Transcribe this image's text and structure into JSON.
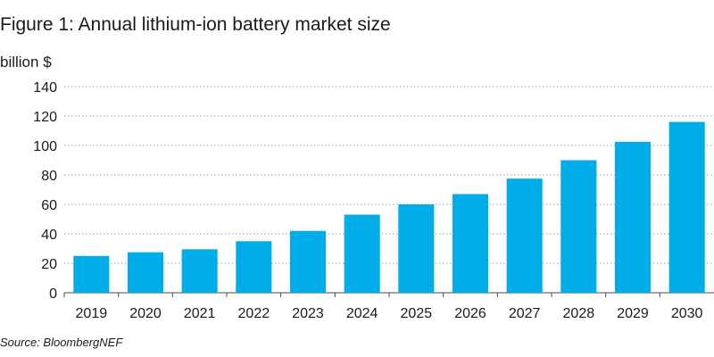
{
  "chart_data": {
    "type": "bar",
    "title": "Figure 1: Annual lithium-ion battery market size",
    "ylabel": "billion $",
    "xlabel": "",
    "categories": [
      "2019",
      "2020",
      "2021",
      "2022",
      "2023",
      "2024",
      "2025",
      "2026",
      "2027",
      "2028",
      "2029",
      "2030"
    ],
    "values": [
      25,
      27.5,
      29.5,
      35,
      42,
      53,
      60,
      67,
      77.5,
      90,
      102.5,
      116
    ],
    "ylim": [
      0,
      140
    ],
    "yticks": [
      0,
      20,
      40,
      60,
      80,
      100,
      120,
      140
    ],
    "grid": true,
    "legend": "none",
    "bar_color": "#00ade8",
    "source": "Source: BloombergNEF"
  }
}
